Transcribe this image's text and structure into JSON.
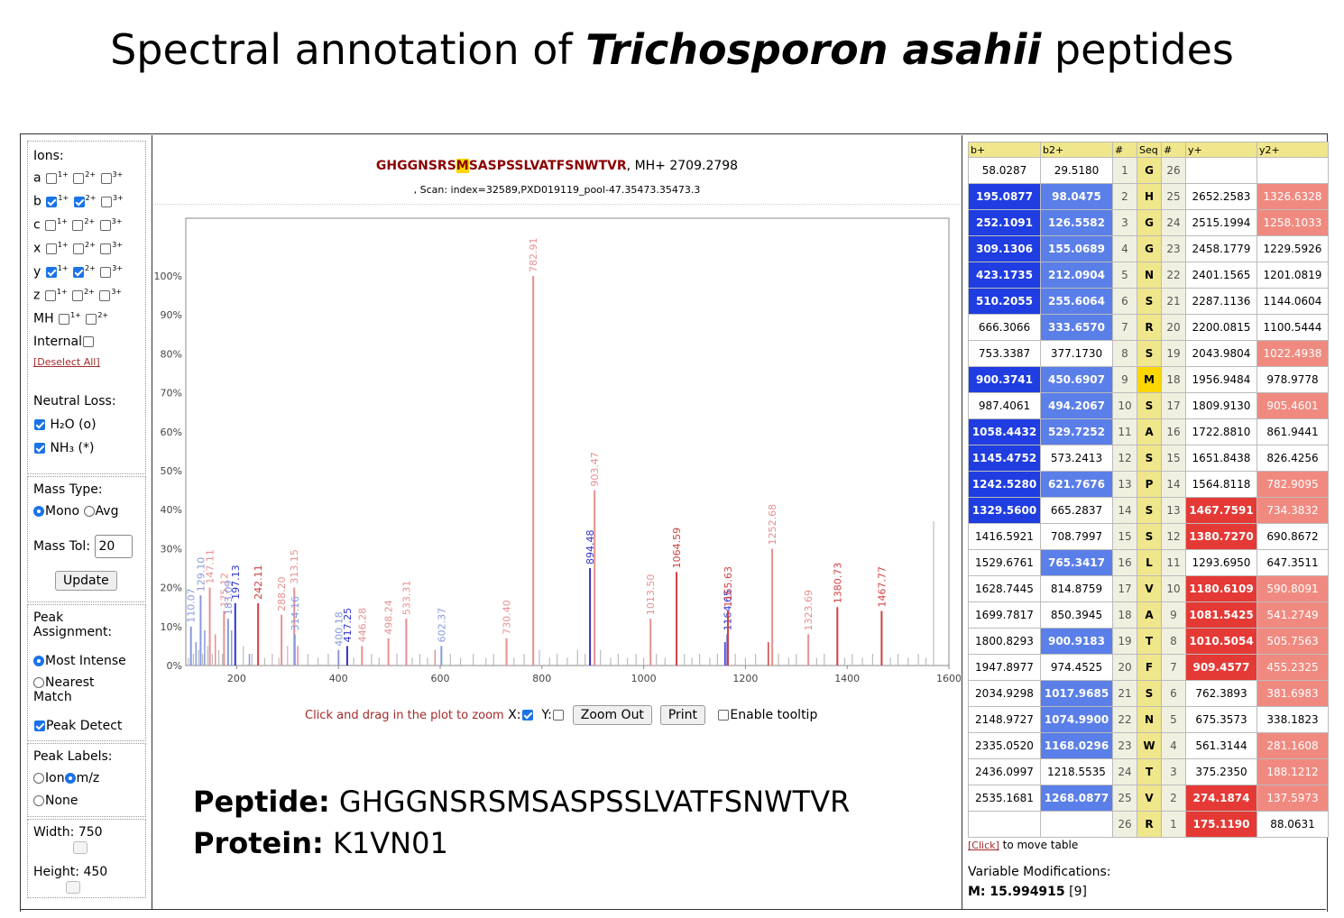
{
  "title": {
    "prefix": "Spectral annotation of ",
    "italic": "Trichosporon asahii",
    "suffix": " peptides"
  },
  "left": {
    "ions_label": "Ions:",
    "ion_rows": [
      {
        "ion": "a",
        "checks": [
          false,
          false,
          false
        ]
      },
      {
        "ion": "b",
        "checks": [
          true,
          true,
          false
        ]
      },
      {
        "ion": "c",
        "checks": [
          false,
          false,
          false
        ]
      },
      {
        "ion": "x",
        "checks": [
          false,
          false,
          false
        ]
      },
      {
        "ion": "y",
        "checks": [
          true,
          true,
          false
        ]
      },
      {
        "ion": "z",
        "checks": [
          false,
          false,
          false
        ]
      }
    ],
    "charges": [
      "1",
      "2",
      "3"
    ],
    "mh_label": "MH",
    "internal_label": "Internal",
    "deselect": "[Deselect All]",
    "neutral_loss_label": "Neutral Loss:",
    "h2o_label": "H₂O (o)",
    "nh3_label": "NH₃ (*)",
    "mass_type_label": "Mass Type:",
    "mono_label": "Mono",
    "avg_label": "Avg",
    "mass_tol_label": "Mass Tol:",
    "mass_tol_value": "20",
    "update_label": "Update",
    "peak_assign_label": "Peak Assignment:",
    "most_intense_label": "Most Intense",
    "nearest_label": "Nearest Match",
    "peak_detect_label": "Peak Detect",
    "peak_labels_label": "Peak Labels:",
    "ion_label": "Ion",
    "mz_label": "m/z",
    "none_label": "None",
    "width_label": "Width: 750",
    "height_label": "Height: 450"
  },
  "center": {
    "seq_before": "GHGGNSRS",
    "seq_mod": "M",
    "seq_after": "SASPSSLVATFSNWTVR",
    "mh": ", MH+ 2709.2798",
    "scan": ", Scan: index=32589,PXD019119_pool-47.35473.35473.3",
    "zoom_hint": "Click and drag in the plot to zoom",
    "x_label": "X:",
    "y_label": "Y:",
    "zoom_out": "Zoom Out",
    "print": "Print",
    "tooltip": "Enable tooltip",
    "peptide_label": "Peptide:",
    "peptide_value": "GHGGNSRSMSASPSSLVATFSNWTVR",
    "protein_label": "Protein:",
    "protein_value": "K1VN01"
  },
  "chart_data": {
    "type": "bar",
    "xlim": [
      100,
      1600
    ],
    "ylim": [
      0,
      100
    ],
    "x_ticks": [
      200,
      400,
      600,
      800,
      1000,
      1200,
      1400,
      1600
    ],
    "y_ticks": [
      "0%",
      "10%",
      "20%",
      "30%",
      "40%",
      "50%",
      "60%",
      "70%",
      "80%",
      "90%",
      "100%"
    ],
    "colors": {
      "b": "#3333cc",
      "y": "#d04040",
      "b_light": "#8899dd",
      "y_light": "#e89090",
      "unassigned": "#bbbbbb"
    },
    "annotated": [
      {
        "x": 110.07,
        "y": 10,
        "label": "110.07",
        "c": "b_light"
      },
      {
        "x": 129.1,
        "y": 18,
        "label": "129.10",
        "c": "b_light"
      },
      {
        "x": 147.11,
        "y": 20,
        "label": "147.11",
        "c": "y_light"
      },
      {
        "x": 175.12,
        "y": 14,
        "label": "175.12",
        "c": "y_light"
      },
      {
        "x": 183.09,
        "y": 12,
        "label": "183.09",
        "c": "b_light"
      },
      {
        "x": 197.13,
        "y": 16,
        "label": "197.13",
        "c": "b"
      },
      {
        "x": 242.11,
        "y": 16,
        "label": "242.11",
        "c": "y"
      },
      {
        "x": 288.2,
        "y": 13,
        "label": "288.20",
        "c": "y_light"
      },
      {
        "x": 313.15,
        "y": 20,
        "label": "313.15",
        "c": "y_light"
      },
      {
        "x": 314.16,
        "y": 8,
        "label": "314.16",
        "c": "b_light"
      },
      {
        "x": 400.18,
        "y": 4,
        "label": "400.18",
        "c": "b_light"
      },
      {
        "x": 417.25,
        "y": 5,
        "label": "417.25",
        "c": "b"
      },
      {
        "x": 446.28,
        "y": 5,
        "label": "446.28",
        "c": "y_light"
      },
      {
        "x": 498.24,
        "y": 7,
        "label": "498.24",
        "c": "y_light"
      },
      {
        "x": 533.31,
        "y": 12,
        "label": "533.31",
        "c": "y_light"
      },
      {
        "x": 602.37,
        "y": 5,
        "label": "602.37",
        "c": "b_light"
      },
      {
        "x": 730.4,
        "y": 7,
        "label": "730.40",
        "c": "y_light"
      },
      {
        "x": 782.91,
        "y": 100,
        "label": "782.91",
        "c": "y_light"
      },
      {
        "x": 894.48,
        "y": 25,
        "label": "894.48",
        "c": "b"
      },
      {
        "x": 903.47,
        "y": 45,
        "label": "903.47",
        "c": "y_light"
      },
      {
        "x": 1013.5,
        "y": 12,
        "label": "1013.50",
        "c": "y_light"
      },
      {
        "x": 1064.59,
        "y": 24,
        "label": "1064.59",
        "c": "y"
      },
      {
        "x": 1164.65,
        "y": 8,
        "label": "1164.65",
        "c": "b"
      },
      {
        "x": 1165.63,
        "y": 14,
        "label": "1165.63",
        "c": "y"
      },
      {
        "x": 1252.68,
        "y": 30,
        "label": "1252.68",
        "c": "y_light"
      },
      {
        "x": 1323.69,
        "y": 8,
        "label": "1323.69",
        "c": "y_light"
      },
      {
        "x": 1380.73,
        "y": 15,
        "label": "1380.73",
        "c": "y"
      },
      {
        "x": 1467.77,
        "y": 14,
        "label": "1467.77",
        "c": "y"
      }
    ],
    "unlabeled_colored": [
      {
        "x": 120,
        "y": 6,
        "c": "b_light"
      },
      {
        "x": 137,
        "y": 9,
        "c": "b_light"
      },
      {
        "x": 158,
        "y": 8,
        "c": "y_light"
      },
      {
        "x": 190,
        "y": 9,
        "c": "b_light"
      },
      {
        "x": 225,
        "y": 3,
        "c": "b_light"
      },
      {
        "x": 320,
        "y": 5,
        "c": "y_light"
      },
      {
        "x": 590,
        "y": 4,
        "c": "y_light"
      },
      {
        "x": 1160,
        "y": 6,
        "c": "b"
      },
      {
        "x": 1245,
        "y": 6,
        "c": "y"
      }
    ],
    "unassigned": [
      {
        "x": 105,
        "y": 2
      },
      {
        "x": 115,
        "y": 3
      },
      {
        "x": 125,
        "y": 4
      },
      {
        "x": 133,
        "y": 3
      },
      {
        "x": 143,
        "y": 5
      },
      {
        "x": 152,
        "y": 3
      },
      {
        "x": 165,
        "y": 4
      },
      {
        "x": 172,
        "y": 3
      },
      {
        "x": 213,
        "y": 5
      },
      {
        "x": 230,
        "y": 3
      },
      {
        "x": 255,
        "y": 2
      },
      {
        "x": 270,
        "y": 3
      },
      {
        "x": 283,
        "y": 2
      },
      {
        "x": 300,
        "y": 5
      },
      {
        "x": 340,
        "y": 3
      },
      {
        "x": 360,
        "y": 2
      },
      {
        "x": 380,
        "y": 3
      },
      {
        "x": 430,
        "y": 2
      },
      {
        "x": 465,
        "y": 3
      },
      {
        "x": 480,
        "y": 2
      },
      {
        "x": 515,
        "y": 3
      },
      {
        "x": 545,
        "y": 2
      },
      {
        "x": 560,
        "y": 3
      },
      {
        "x": 575,
        "y": 2
      },
      {
        "x": 620,
        "y": 3
      },
      {
        "x": 640,
        "y": 2
      },
      {
        "x": 665,
        "y": 3
      },
      {
        "x": 690,
        "y": 2
      },
      {
        "x": 705,
        "y": 3
      },
      {
        "x": 745,
        "y": 2
      },
      {
        "x": 765,
        "y": 3
      },
      {
        "x": 795,
        "y": 4
      },
      {
        "x": 815,
        "y": 2
      },
      {
        "x": 830,
        "y": 3
      },
      {
        "x": 850,
        "y": 2
      },
      {
        "x": 870,
        "y": 4
      },
      {
        "x": 885,
        "y": 3
      },
      {
        "x": 915,
        "y": 4
      },
      {
        "x": 935,
        "y": 2
      },
      {
        "x": 950,
        "y": 3
      },
      {
        "x": 968,
        "y": 2
      },
      {
        "x": 985,
        "y": 3
      },
      {
        "x": 1000,
        "y": 2
      },
      {
        "x": 1025,
        "y": 3
      },
      {
        "x": 1042,
        "y": 2
      },
      {
        "x": 1080,
        "y": 3
      },
      {
        "x": 1095,
        "y": 2
      },
      {
        "x": 1110,
        "y": 3
      },
      {
        "x": 1130,
        "y": 2
      },
      {
        "x": 1145,
        "y": 3
      },
      {
        "x": 1180,
        "y": 3
      },
      {
        "x": 1200,
        "y": 2
      },
      {
        "x": 1220,
        "y": 3
      },
      {
        "x": 1265,
        "y": 3
      },
      {
        "x": 1285,
        "y": 2
      },
      {
        "x": 1300,
        "y": 3
      },
      {
        "x": 1340,
        "y": 2
      },
      {
        "x": 1355,
        "y": 3
      },
      {
        "x": 1395,
        "y": 2
      },
      {
        "x": 1410,
        "y": 3
      },
      {
        "x": 1430,
        "y": 2
      },
      {
        "x": 1450,
        "y": 3
      },
      {
        "x": 1485,
        "y": 2
      },
      {
        "x": 1500,
        "y": 3
      },
      {
        "x": 1520,
        "y": 2
      },
      {
        "x": 1540,
        "y": 3
      },
      {
        "x": 1555,
        "y": 2
      },
      {
        "x": 1570,
        "y": 37
      }
    ]
  },
  "table": {
    "headers": [
      "b+",
      "b2+",
      "#",
      "Seq",
      "#",
      "y+",
      "y2+"
    ],
    "rows": [
      {
        "b": "58.0287",
        "bc": "plain",
        "b2": "29.5180",
        "b2c": "plain",
        "n": "1",
        "s": "G",
        "n2": "26",
        "y": "",
        "yc": "plain",
        "y2": "",
        "y2c": "plain"
      },
      {
        "b": "195.0877",
        "bc": "b1",
        "b2": "98.0475",
        "b2c": "b2",
        "n": "2",
        "s": "H",
        "n2": "25",
        "y": "2652.2583",
        "yc": "plain",
        "y2": "1326.6328",
        "y2c": "y2"
      },
      {
        "b": "252.1091",
        "bc": "b1",
        "b2": "126.5582",
        "b2c": "b2",
        "n": "3",
        "s": "G",
        "n2": "24",
        "y": "2515.1994",
        "yc": "plain",
        "y2": "1258.1033",
        "y2c": "y2"
      },
      {
        "b": "309.1306",
        "bc": "b1",
        "b2": "155.0689",
        "b2c": "b2",
        "n": "4",
        "s": "G",
        "n2": "23",
        "y": "2458.1779",
        "yc": "plain",
        "y2": "1229.5926",
        "y2c": "plain"
      },
      {
        "b": "423.1735",
        "bc": "b1",
        "b2": "212.0904",
        "b2c": "b2",
        "n": "5",
        "s": "N",
        "n2": "22",
        "y": "2401.1565",
        "yc": "plain",
        "y2": "1201.0819",
        "y2c": "plain"
      },
      {
        "b": "510.2055",
        "bc": "b1",
        "b2": "255.6064",
        "b2c": "b2",
        "n": "6",
        "s": "S",
        "n2": "21",
        "y": "2287.1136",
        "yc": "plain",
        "y2": "1144.0604",
        "y2c": "plain"
      },
      {
        "b": "666.3066",
        "bc": "plain",
        "b2": "333.6570",
        "b2c": "b2",
        "n": "7",
        "s": "R",
        "n2": "20",
        "y": "2200.0815",
        "yc": "plain",
        "y2": "1100.5444",
        "y2c": "plain"
      },
      {
        "b": "753.3387",
        "bc": "plain",
        "b2": "377.1730",
        "b2c": "plain",
        "n": "8",
        "s": "S",
        "n2": "19",
        "y": "2043.9804",
        "yc": "plain",
        "y2": "1022.4938",
        "y2c": "y2"
      },
      {
        "b": "900.3741",
        "bc": "b1",
        "b2": "450.6907",
        "b2c": "b2",
        "n": "9",
        "s": "M",
        "n2": "18",
        "y": "1956.9484",
        "yc": "plain",
        "y2": "978.9778",
        "y2c": "plain"
      },
      {
        "b": "987.4061",
        "bc": "plain",
        "b2": "494.2067",
        "b2c": "b2",
        "n": "10",
        "s": "S",
        "n2": "17",
        "y": "1809.9130",
        "yc": "plain",
        "y2": "905.4601",
        "y2c": "y2"
      },
      {
        "b": "1058.4432",
        "bc": "b1",
        "b2": "529.7252",
        "b2c": "b2",
        "n": "11",
        "s": "A",
        "n2": "16",
        "y": "1722.8810",
        "yc": "plain",
        "y2": "861.9441",
        "y2c": "plain"
      },
      {
        "b": "1145.4752",
        "bc": "b1",
        "b2": "573.2413",
        "b2c": "plain",
        "n": "12",
        "s": "S",
        "n2": "15",
        "y": "1651.8438",
        "yc": "plain",
        "y2": "826.4256",
        "y2c": "plain"
      },
      {
        "b": "1242.5280",
        "bc": "b1",
        "b2": "621.7676",
        "b2c": "b2",
        "n": "13",
        "s": "P",
        "n2": "14",
        "y": "1564.8118",
        "yc": "plain",
        "y2": "782.9095",
        "y2c": "y2"
      },
      {
        "b": "1329.5600",
        "bc": "b1",
        "b2": "665.2837",
        "b2c": "plain",
        "n": "14",
        "s": "S",
        "n2": "13",
        "y": "1467.7591",
        "yc": "y1",
        "y2": "734.3832",
        "y2c": "y2"
      },
      {
        "b": "1416.5921",
        "bc": "plain",
        "b2": "708.7997",
        "b2c": "plain",
        "n": "15",
        "s": "S",
        "n2": "12",
        "y": "1380.7270",
        "yc": "y1",
        "y2": "690.8672",
        "y2c": "plain"
      },
      {
        "b": "1529.6761",
        "bc": "plain",
        "b2": "765.3417",
        "b2c": "b2",
        "n": "16",
        "s": "L",
        "n2": "11",
        "y": "1293.6950",
        "yc": "plain",
        "y2": "647.3511",
        "y2c": "plain"
      },
      {
        "b": "1628.7445",
        "bc": "plain",
        "b2": "814.8759",
        "b2c": "plain",
        "n": "17",
        "s": "V",
        "n2": "10",
        "y": "1180.6109",
        "yc": "y1",
        "y2": "590.8091",
        "y2c": "y2"
      },
      {
        "b": "1699.7817",
        "bc": "plain",
        "b2": "850.3945",
        "b2c": "plain",
        "n": "18",
        "s": "A",
        "n2": "9",
        "y": "1081.5425",
        "yc": "y1",
        "y2": "541.2749",
        "y2c": "y2"
      },
      {
        "b": "1800.8293",
        "bc": "plain",
        "b2": "900.9183",
        "b2c": "b2",
        "n": "19",
        "s": "T",
        "n2": "8",
        "y": "1010.5054",
        "yc": "y1",
        "y2": "505.7563",
        "y2c": "y2"
      },
      {
        "b": "1947.8977",
        "bc": "plain",
        "b2": "974.4525",
        "b2c": "plain",
        "n": "20",
        "s": "F",
        "n2": "7",
        "y": "909.4577",
        "yc": "y1",
        "y2": "455.2325",
        "y2c": "y2"
      },
      {
        "b": "2034.9298",
        "bc": "plain",
        "b2": "1017.9685",
        "b2c": "b2",
        "n": "21",
        "s": "S",
        "n2": "6",
        "y": "762.3893",
        "yc": "plain",
        "y2": "381.6983",
        "y2c": "y2"
      },
      {
        "b": "2148.9727",
        "bc": "plain",
        "b2": "1074.9900",
        "b2c": "b2",
        "n": "22",
        "s": "N",
        "n2": "5",
        "y": "675.3573",
        "yc": "plain",
        "y2": "338.1823",
        "y2c": "plain"
      },
      {
        "b": "2335.0520",
        "bc": "plain",
        "b2": "1168.0296",
        "b2c": "b2",
        "n": "23",
        "s": "W",
        "n2": "4",
        "y": "561.3144",
        "yc": "plain",
        "y2": "281.1608",
        "y2c": "y2"
      },
      {
        "b": "2436.0997",
        "bc": "plain",
        "b2": "1218.5535",
        "b2c": "plain",
        "n": "24",
        "s": "T",
        "n2": "3",
        "y": "375.2350",
        "yc": "plain",
        "y2": "188.1212",
        "y2c": "y2"
      },
      {
        "b": "2535.1681",
        "bc": "plain",
        "b2": "1268.0877",
        "b2c": "b2",
        "n": "25",
        "s": "V",
        "n2": "2",
        "y": "274.1874",
        "yc": "y1",
        "y2": "137.5973",
        "y2c": "y2"
      },
      {
        "b": "",
        "bc": "plain",
        "b2": "",
        "b2c": "plain",
        "n": "26",
        "s": "R",
        "n2": "1",
        "y": "175.1190",
        "yc": "y1",
        "y2": "88.0631",
        "y2c": "plain"
      }
    ],
    "click_link": "[Click]",
    "click_text": " to move table",
    "var_mod_label": "Variable Modifications:",
    "var_mod_value": "M: 15.994915",
    "var_mod_pos": " [9]"
  }
}
